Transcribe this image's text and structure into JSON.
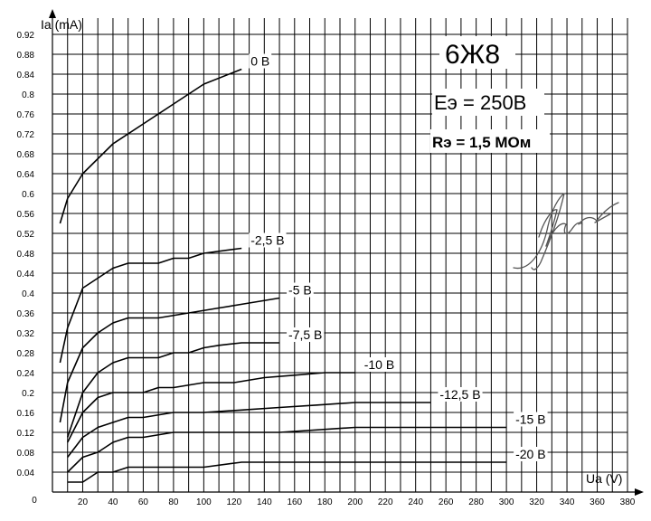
{
  "chart_data": {
    "type": "line",
    "title": "6Ж8",
    "annotations": [
      "Eэ = 250В",
      "Rэ = 1,5 МОм"
    ],
    "xlabel": "Ua (V)",
    "ylabel": "Ia (mA)",
    "xlim": [
      0,
      380
    ],
    "ylim": [
      0,
      0.96
    ],
    "x_ticks": [
      0,
      20,
      40,
      60,
      80,
      100,
      120,
      140,
      160,
      180,
      200,
      220,
      240,
      260,
      280,
      300,
      320,
      340,
      360,
      380
    ],
    "y_ticks": [
      0.04,
      0.08,
      0.12,
      0.16,
      0.2,
      0.24,
      0.28,
      0.32,
      0.36,
      0.4,
      0.44,
      0.48,
      0.52,
      0.56,
      0.6,
      0.64,
      0.68,
      0.72,
      0.76,
      0.8,
      0.84,
      0.88,
      0.92
    ],
    "x_tick_labels": [
      "0",
      "20",
      "40",
      "60",
      "80",
      "100",
      "120",
      "140",
      "160",
      "180",
      "200",
      "220",
      "240",
      "260",
      "280",
      "300",
      "320",
      "340",
      "360",
      "380"
    ],
    "y_tick_labels": [
      "0.04",
      "0.08",
      "0.12",
      "0.16",
      "0.2",
      "0.24",
      "0.28",
      "0.32",
      "0.36",
      "0.4",
      "0.44",
      "0.48",
      "0.52",
      "0.56",
      "0.6",
      "0.64",
      "0.68",
      "0.72",
      "0.76",
      "0.8",
      "0.84",
      "0.88",
      "0.92"
    ],
    "grid": true,
    "series": [
      {
        "name": "0 В",
        "x": [
          5,
          10,
          20,
          30,
          40,
          60,
          80,
          100,
          125
        ],
        "y": [
          0.54,
          0.59,
          0.64,
          0.67,
          0.7,
          0.74,
          0.78,
          0.82,
          0.85
        ]
      },
      {
        "name": "-2,5 В",
        "x": [
          5,
          10,
          20,
          30,
          40,
          50,
          70,
          80,
          90,
          100,
          125
        ],
        "y": [
          0.26,
          0.33,
          0.41,
          0.43,
          0.45,
          0.46,
          0.46,
          0.47,
          0.47,
          0.48,
          0.49
        ]
      },
      {
        "name": "-5 В",
        "x": [
          5,
          10,
          20,
          30,
          40,
          50,
          70,
          90,
          110,
          130,
          150
        ],
        "y": [
          0.14,
          0.22,
          0.29,
          0.32,
          0.34,
          0.35,
          0.35,
          0.36,
          0.37,
          0.38,
          0.39
        ]
      },
      {
        "name": "-7,5 В",
        "x": [
          10,
          20,
          30,
          40,
          50,
          60,
          70,
          80,
          90,
          100,
          110,
          125,
          150
        ],
        "y": [
          0.11,
          0.2,
          0.24,
          0.26,
          0.27,
          0.27,
          0.27,
          0.28,
          0.28,
          0.29,
          0.295,
          0.3,
          0.3
        ]
      },
      {
        "name": "-10 В",
        "x": [
          10,
          20,
          30,
          40,
          50,
          60,
          70,
          80,
          100,
          120,
          140,
          160,
          180,
          200
        ],
        "y": [
          0.1,
          0.16,
          0.19,
          0.2,
          0.2,
          0.2,
          0.21,
          0.21,
          0.22,
          0.22,
          0.23,
          0.235,
          0.24,
          0.24
        ]
      },
      {
        "name": "-12,5 В",
        "x": [
          10,
          20,
          30,
          40,
          50,
          60,
          80,
          100,
          125,
          150,
          175,
          200,
          250
        ],
        "y": [
          0.07,
          0.11,
          0.13,
          0.14,
          0.15,
          0.15,
          0.16,
          0.16,
          0.165,
          0.17,
          0.175,
          0.18,
          0.18
        ]
      },
      {
        "name": "-15 В",
        "x": [
          10,
          20,
          30,
          40,
          50,
          60,
          80,
          100,
          150,
          200,
          250,
          300
        ],
        "y": [
          0.04,
          0.07,
          0.08,
          0.1,
          0.11,
          0.11,
          0.12,
          0.12,
          0.12,
          0.13,
          0.13,
          0.13
        ]
      },
      {
        "name": "-20 В",
        "x": [
          10,
          20,
          30,
          40,
          50,
          60,
          100,
          125,
          150,
          200,
          250,
          300
        ],
        "y": [
          0.02,
          0.02,
          0.04,
          0.04,
          0.05,
          0.05,
          0.05,
          0.06,
          0.06,
          0.06,
          0.06,
          0.06
        ]
      }
    ]
  }
}
